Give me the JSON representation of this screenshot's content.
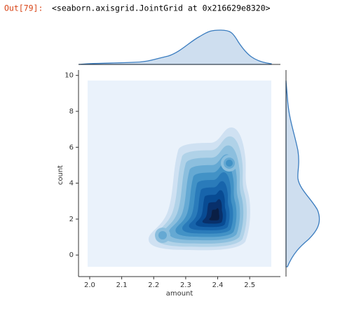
{
  "prompt": "Out[79]:",
  "output": "<seaborn.axisgrid.JointGrid at 0x216629e8320>",
  "chart_data": {
    "type": "kde",
    "xlabel": "amount",
    "ylabel": "count",
    "xlim": [
      1.965,
      2.596
    ],
    "ylim": [
      -1.2,
      10.3
    ],
    "xticks": [
      {
        "value": 2,
        "label": "2.0"
      },
      2.1,
      2.2,
      2.3,
      2.4,
      2.5
    ],
    "yticks": [
      0,
      2,
      4,
      6,
      8,
      10
    ],
    "color": "#3a7cbf"
  }
}
